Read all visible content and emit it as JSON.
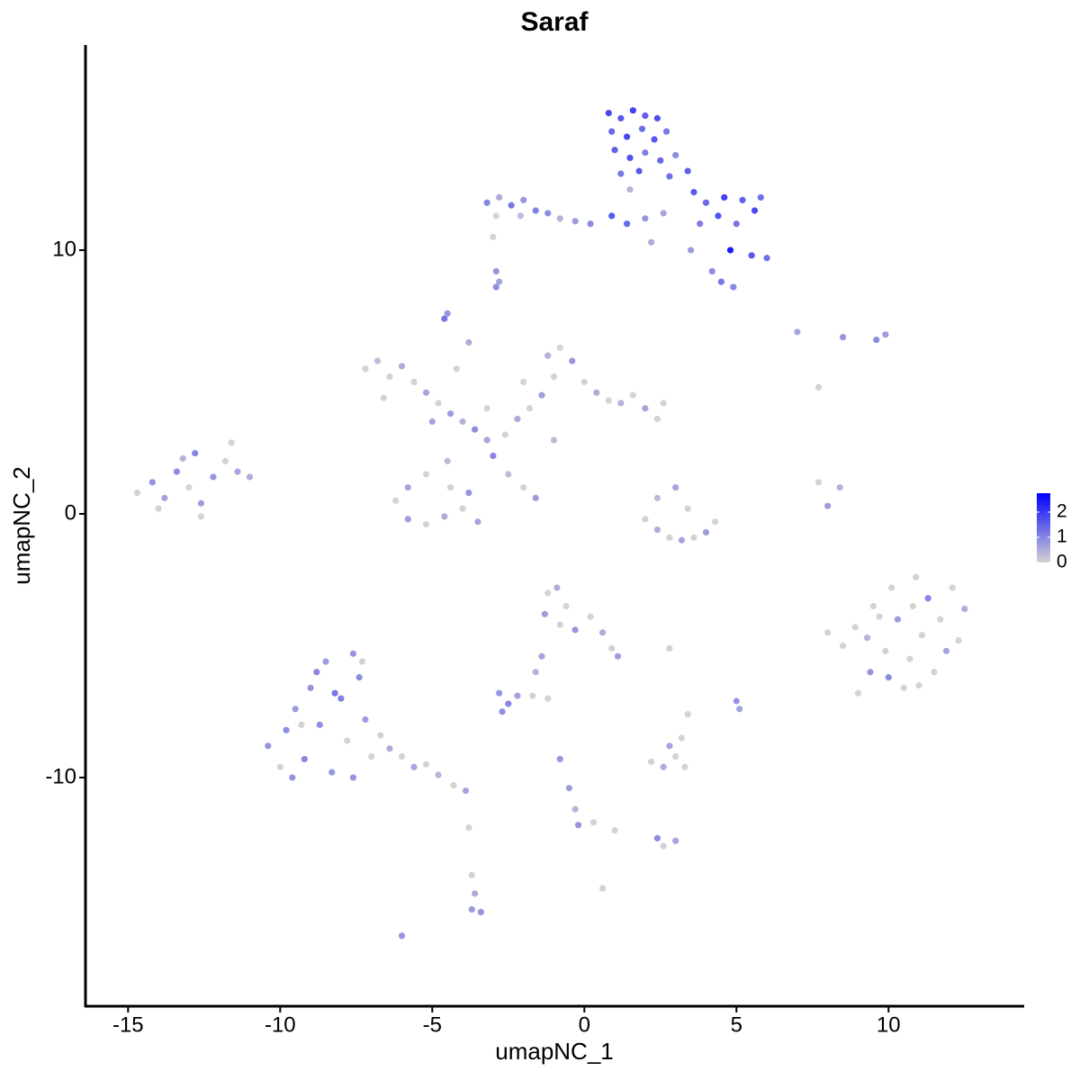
{
  "chart_data": {
    "type": "scatter",
    "title": "Saraf",
    "x_label": "umapNC_1",
    "y_label": "umapNC_2",
    "xlim": [
      -16.4,
      14.46
    ],
    "ylim": [
      -18.67,
      17.78
    ],
    "xticks": [
      -15,
      -10,
      -5,
      0,
      5,
      10
    ],
    "yticks": [
      -10,
      0,
      10
    ],
    "color_low": "#d3d3d3",
    "color_high": "#0000ff",
    "color_lim": [
      0,
      2.75
    ],
    "color_ticks": [
      0,
      1,
      2
    ],
    "x": [
      0.8,
      1.2,
      1.6,
      2.0,
      2.4,
      0.9,
      1.4,
      1.9,
      2.3,
      2.7,
      1.0,
      1.5,
      2.0,
      2.5,
      3.0,
      1.2,
      1.8,
      2.8,
      3.4,
      3.6,
      4.0,
      4.6,
      5.2,
      5.8,
      4.4,
      5.0,
      5.6,
      3.8,
      0.9,
      1.4,
      2.0,
      2.6,
      4.8,
      5.5,
      6.0,
      4.5,
      4.9,
      4.2,
      3.5,
      1.5,
      2.2,
      -3.2,
      -2.8,
      -2.4,
      -2.0,
      -1.6,
      -1.2,
      -0.8,
      -0.3,
      0.2,
      -2.9,
      -2.1,
      -3.0,
      -2.9,
      -2.8,
      -4.6,
      -4.5,
      -2.9,
      -7.2,
      -6.8,
      -6.4,
      -6.0,
      -5.6,
      -5.2,
      -4.8,
      -4.4,
      -4.0,
      -3.6,
      -3.2,
      -3.0,
      -2.6,
      -2.2,
      -1.8,
      -1.4,
      -1.0,
      -1.2,
      -0.8,
      -0.4,
      0.0,
      0.4,
      0.8,
      1.2,
      1.6,
      2.0,
      2.4,
      2.6,
      -4.5,
      -5.2,
      -5.8,
      -6.2,
      -5.8,
      -5.2,
      -4.6,
      -4.0,
      -3.8,
      -4.4,
      -3.5,
      -2.5,
      -2.0,
      -1.6,
      -4.2,
      -3.8,
      -3.2,
      -5.0,
      -2.0,
      -1.0,
      -6.6,
      -14.7,
      -14.2,
      -13.8,
      -13.4,
      -13.0,
      -12.6,
      -12.2,
      -11.8,
      -11.4,
      -11.0,
      -13.2,
      -12.6,
      -11.6,
      -14.0,
      -12.8,
      2.0,
      2.4,
      2.8,
      3.2,
      3.6,
      4.0,
      4.3,
      2.4,
      3.0,
      3.4,
      8.0,
      8.4,
      7.7,
      8.0,
      8.5,
      8.9,
      9.0,
      9.4,
      9.5,
      9.9,
      10.1,
      10.3,
      10.5,
      10.7,
      10.9,
      11.1,
      11.3,
      11.5,
      11.7,
      11.9,
      12.1,
      12.3,
      12.5,
      9.3,
      10.0,
      11.0,
      9.7,
      10.8,
      -10.4,
      -10.0,
      -9.8,
      -9.5,
      -9.2,
      -9.0,
      -8.7,
      -8.5,
      -8.3,
      -8.0,
      -7.8,
      -7.6,
      -7.4,
      -7.2,
      -7.0,
      -7.6,
      -8.8,
      -9.6,
      -6.7,
      -6.4,
      -6.0,
      -5.6,
      -5.2,
      -4.8,
      -4.3,
      -3.9,
      -7.3,
      -8.2,
      -9.3,
      -1.2,
      -0.9,
      -0.6,
      -1.3,
      -0.8,
      -0.3,
      0.2,
      0.6,
      0.9,
      1.1,
      -1.4,
      -1.6,
      -2.8,
      -2.5,
      -2.2,
      -2.7,
      -1.2,
      2.2,
      2.6,
      3.0,
      2.8,
      3.3,
      3.2,
      3.0,
      2.4,
      2.6,
      5.0,
      5.1,
      3.4,
      2.8,
      -0.8,
      -0.5,
      -0.3,
      -0.2,
      0.3,
      1.0,
      -3.7,
      -3.6,
      -3.4,
      -3.7,
      -3.8,
      -6.0,
      0.6,
      7.0,
      7.7,
      8.5,
      9.6,
      9.9,
      -1.7
    ],
    "values": [
      15.2,
      15.0,
      15.3,
      15.1,
      15.0,
      14.5,
      14.3,
      14.6,
      14.2,
      14.5,
      13.8,
      13.5,
      13.7,
      13.4,
      13.6,
      12.9,
      13.0,
      12.8,
      13.0,
      12.2,
      11.8,
      12.0,
      11.9,
      12.0,
      11.3,
      11.0,
      11.5,
      11.0,
      11.3,
      11.0,
      11.2,
      11.4,
      10.0,
      9.8,
      9.7,
      8.8,
      8.6,
      9.2,
      10.0,
      12.3,
      10.3,
      11.8,
      12.0,
      11.7,
      11.9,
      11.5,
      11.4,
      11.2,
      11.1,
      11.0,
      11.3,
      11.3,
      10.5,
      8.6,
      8.8,
      7.4,
      7.6,
      9.2,
      5.5,
      5.8,
      5.2,
      5.6,
      5.0,
      4.6,
      4.2,
      3.8,
      3.5,
      3.2,
      2.8,
      2.2,
      3.0,
      3.6,
      4.0,
      4.5,
      5.2,
      6.0,
      6.3,
      5.8,
      5.0,
      4.6,
      4.3,
      4.2,
      4.5,
      4.0,
      3.6,
      4.2,
      2.0,
      1.5,
      1.0,
      0.5,
      -0.2,
      -0.4,
      -0.1,
      0.2,
      0.8,
      1.0,
      -0.3,
      1.5,
      1.0,
      0.6,
      5.5,
      6.5,
      4.0,
      3.5,
      5.0,
      2.8,
      4.4,
      0.8,
      1.2,
      0.6,
      1.6,
      1.0,
      0.4,
      1.4,
      2.0,
      1.6,
      1.4,
      2.1,
      -0.1,
      2.7,
      0.2,
      2.3,
      -0.2,
      -0.6,
      -0.9,
      -1.0,
      -0.9,
      -0.7,
      -0.3,
      0.6,
      1.0,
      0.2,
      0.3,
      1.0,
      1.2,
      -4.5,
      -5.0,
      -4.3,
      -6.8,
      -6.0,
      -3.5,
      -5.2,
      -2.8,
      -4.0,
      -6.6,
      -5.5,
      -2.4,
      -4.6,
      -3.2,
      -6.0,
      -4.0,
      -5.2,
      -2.8,
      -4.8,
      -3.6,
      -4.7,
      -6.2,
      -6.5,
      -3.9,
      -3.5,
      -8.8,
      -9.6,
      -8.2,
      -7.4,
      -9.3,
      -6.6,
      -8.0,
      -5.6,
      -9.8,
      -7.0,
      -8.6,
      -5.3,
      -6.2,
      -7.8,
      -9.2,
      -10.0,
      -6.0,
      -10.0,
      -8.4,
      -8.9,
      -9.2,
      -9.6,
      -9.5,
      -9.9,
      -10.3,
      -10.5,
      -5.6,
      -6.8,
      -8.0,
      -3.0,
      -2.8,
      -3.5,
      -3.8,
      -4.2,
      -4.4,
      -3.9,
      -4.5,
      -5.1,
      -5.4,
      -5.4,
      -6.0,
      -6.8,
      -7.2,
      -6.9,
      -7.5,
      -7.0,
      -9.4,
      -9.6,
      -9.2,
      -8.8,
      -9.6,
      -8.5,
      -12.4,
      -12.3,
      -12.6,
      -7.1,
      -7.4,
      -7.6,
      -5.1,
      -9.3,
      -10.4,
      -11.2,
      -11.8,
      -11.7,
      -12.0,
      -13.7,
      -14.4,
      -15.1,
      -15.0,
      -11.9,
      -16.0,
      -14.2,
      6.9,
      4.8,
      6.7,
      6.6,
      6.8,
      -6.9
    ],
    "expression": [
      1.8,
      1.6,
      1.9,
      1.5,
      1.7,
      1.4,
      1.8,
      1.3,
      1.6,
      1.2,
      1.5,
      1.7,
      1.1,
      1.4,
      0.9,
      1.2,
      1.6,
      1.3,
      1.5,
      1.6,
      1.4,
      1.9,
      1.5,
      1.3,
      1.7,
      1.2,
      1.8,
      1.1,
      1.6,
      1.4,
      0.8,
      0.6,
      2.4,
      1.6,
      1.3,
      1.2,
      1.0,
      0.9,
      0.7,
      0.4,
      0.5,
      1.0,
      0.5,
      1.2,
      0.8,
      1.1,
      0.9,
      0.4,
      0.7,
      0.9,
      0,
      0.3,
      0,
      0.9,
      0.6,
      1.2,
      0.8,
      0.8,
      0,
      0.3,
      0,
      0.5,
      0,
      0.6,
      0,
      0.7,
      0.4,
      0.9,
      0.6,
      1.0,
      0,
      0.5,
      0,
      0.7,
      0,
      0.4,
      0,
      0.8,
      0,
      0.5,
      0,
      0.4,
      0,
      0.6,
      0,
      0,
      0.3,
      0,
      0.6,
      0,
      0.7,
      0,
      0.5,
      0,
      0.8,
      0,
      0.6,
      0.3,
      0,
      0.7,
      0,
      0.5,
      0,
      0.6,
      0,
      0.3,
      0,
      0,
      0.8,
      0.6,
      0.9,
      0,
      0.7,
      0.8,
      0,
      0.6,
      0.5,
      0.4,
      0,
      0,
      0,
      1.0,
      0,
      0.5,
      0,
      0.6,
      0,
      0.7,
      0,
      0.3,
      0.6,
      0,
      0.7,
      0.4,
      0,
      0,
      0,
      0,
      0,
      0.8,
      0,
      0,
      0,
      0.7,
      0,
      0,
      0,
      0,
      1.0,
      0,
      0,
      0.6,
      0,
      0,
      0.5,
      0.4,
      0.9,
      0,
      0,
      0,
      0.8,
      0,
      0.9,
      0.7,
      1.0,
      0.8,
      0.9,
      0.7,
      0.8,
      1.1,
      0,
      0.8,
      0.9,
      0.7,
      0,
      0.8,
      1.0,
      0.8,
      0,
      0.5,
      0,
      0.6,
      0,
      0.4,
      0,
      0.6,
      0,
      1.2,
      0,
      0,
      0.5,
      0,
      0.7,
      0,
      0.8,
      0,
      0.5,
      0,
      0.7,
      0.6,
      0.4,
      0.8,
      1.0,
      0.6,
      0.9,
      0,
      0,
      0.5,
      0,
      0.6,
      0,
      0,
      0.6,
      0.9,
      0,
      0.8,
      0.6,
      0,
      0,
      0.8,
      0.7,
      0.4,
      0.8,
      0,
      0,
      0,
      0.5,
      0.8,
      0.7,
      0,
      0.8,
      0,
      0.6,
      0,
      0.8,
      0.9,
      0.7,
      0
    ]
  }
}
